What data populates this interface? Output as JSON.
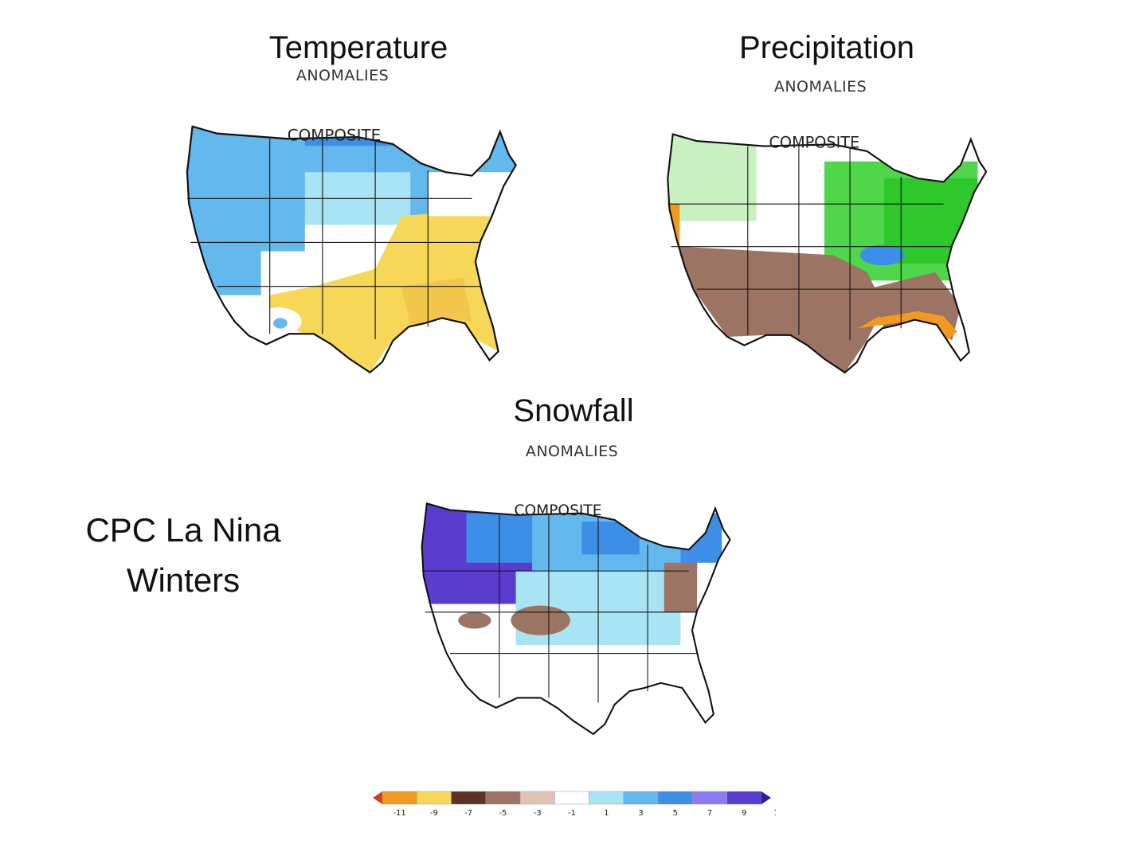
{
  "panels": [
    {
      "title": "Temperature",
      "subtitle": "ANOMALIES",
      "label": "COMPOSITE"
    },
    {
      "title": "Precipitation",
      "subtitle": "ANOMALIES",
      "label": "COMPOSITE"
    },
    {
      "title": "Snowfall",
      "subtitle": "ANOMALIES",
      "label": "COMPOSITE"
    }
  ],
  "caption": {
    "line1": "CPC La Nina",
    "line2": "Winters"
  },
  "legend": {
    "colors": [
      "#d93a1d",
      "#f29a1f",
      "#f6d757",
      "#5a3423",
      "#9c7464",
      "#e2c2b5",
      "#ffffff",
      "#a8e4f4",
      "#63b8ee",
      "#3d8ee6",
      "#8a7cf0",
      "#5a3ccf",
      "#2f1aa3"
    ],
    "ticks": [
      "-11",
      "-9",
      "-7",
      "-5",
      "-3",
      "-1",
      "1",
      "3",
      "5",
      "7",
      "9",
      "11"
    ]
  }
}
